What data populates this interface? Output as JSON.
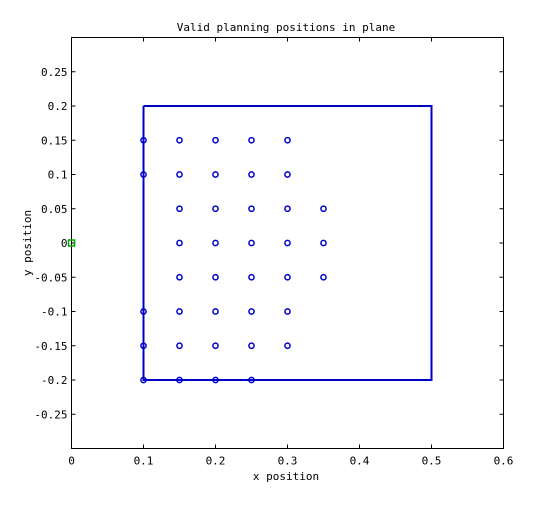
{
  "chart_data": {
    "type": "scatter",
    "title": "Valid planning positions in plane",
    "xlabel": "x position",
    "ylabel": "y position",
    "xlim": [
      0,
      0.6
    ],
    "ylim": [
      -0.3,
      0.3
    ],
    "xticks": [
      "0",
      "0.1",
      "0.2",
      "0.3",
      "0.4",
      "0.5",
      "0.6"
    ],
    "yticks": [
      "-0.25",
      "-0.2",
      "-0.15",
      "-0.1",
      "-0.05",
      "0",
      "0.05",
      "0.1",
      "0.15",
      "0.2",
      "0.25"
    ],
    "grid": false,
    "legend": "none",
    "boundary": {
      "x": [
        0.1,
        0.5,
        0.5,
        0.1,
        0.1
      ],
      "y": [
        0.2,
        0.2,
        -0.2,
        -0.2,
        0.2
      ],
      "color": "#0000cc"
    },
    "series": [
      {
        "marker": "circle",
        "color": "#0000cc",
        "x": [
          0.1,
          0.1,
          0.1,
          0.1,
          0.1,
          0.15,
          0.15,
          0.15,
          0.15,
          0.15,
          0.15,
          0.15,
          0.15,
          0.2,
          0.2,
          0.2,
          0.2,
          0.2,
          0.2,
          0.2,
          0.2,
          0.25,
          0.25,
          0.25,
          0.25,
          0.25,
          0.25,
          0.25,
          0.25,
          0.3,
          0.3,
          0.3,
          0.3,
          0.3,
          0.3,
          0.3,
          0.35,
          0.35,
          0.35
        ],
        "y": [
          0.15,
          0.1,
          -0.1,
          -0.15,
          -0.2,
          0.15,
          0.1,
          0.05,
          0,
          -0.05,
          -0.1,
          -0.15,
          -0.2,
          0.15,
          0.1,
          0.05,
          0,
          -0.05,
          -0.1,
          -0.15,
          -0.2,
          0.15,
          0.1,
          0.05,
          0,
          -0.05,
          -0.1,
          -0.15,
          -0.2,
          0.15,
          0.1,
          0.05,
          0,
          -0.05,
          -0.1,
          -0.15,
          0.05,
          0,
          -0.05
        ]
      },
      {
        "marker": "square",
        "color": "#00aa00",
        "x": [
          0
        ],
        "y": [
          0
        ]
      }
    ]
  }
}
